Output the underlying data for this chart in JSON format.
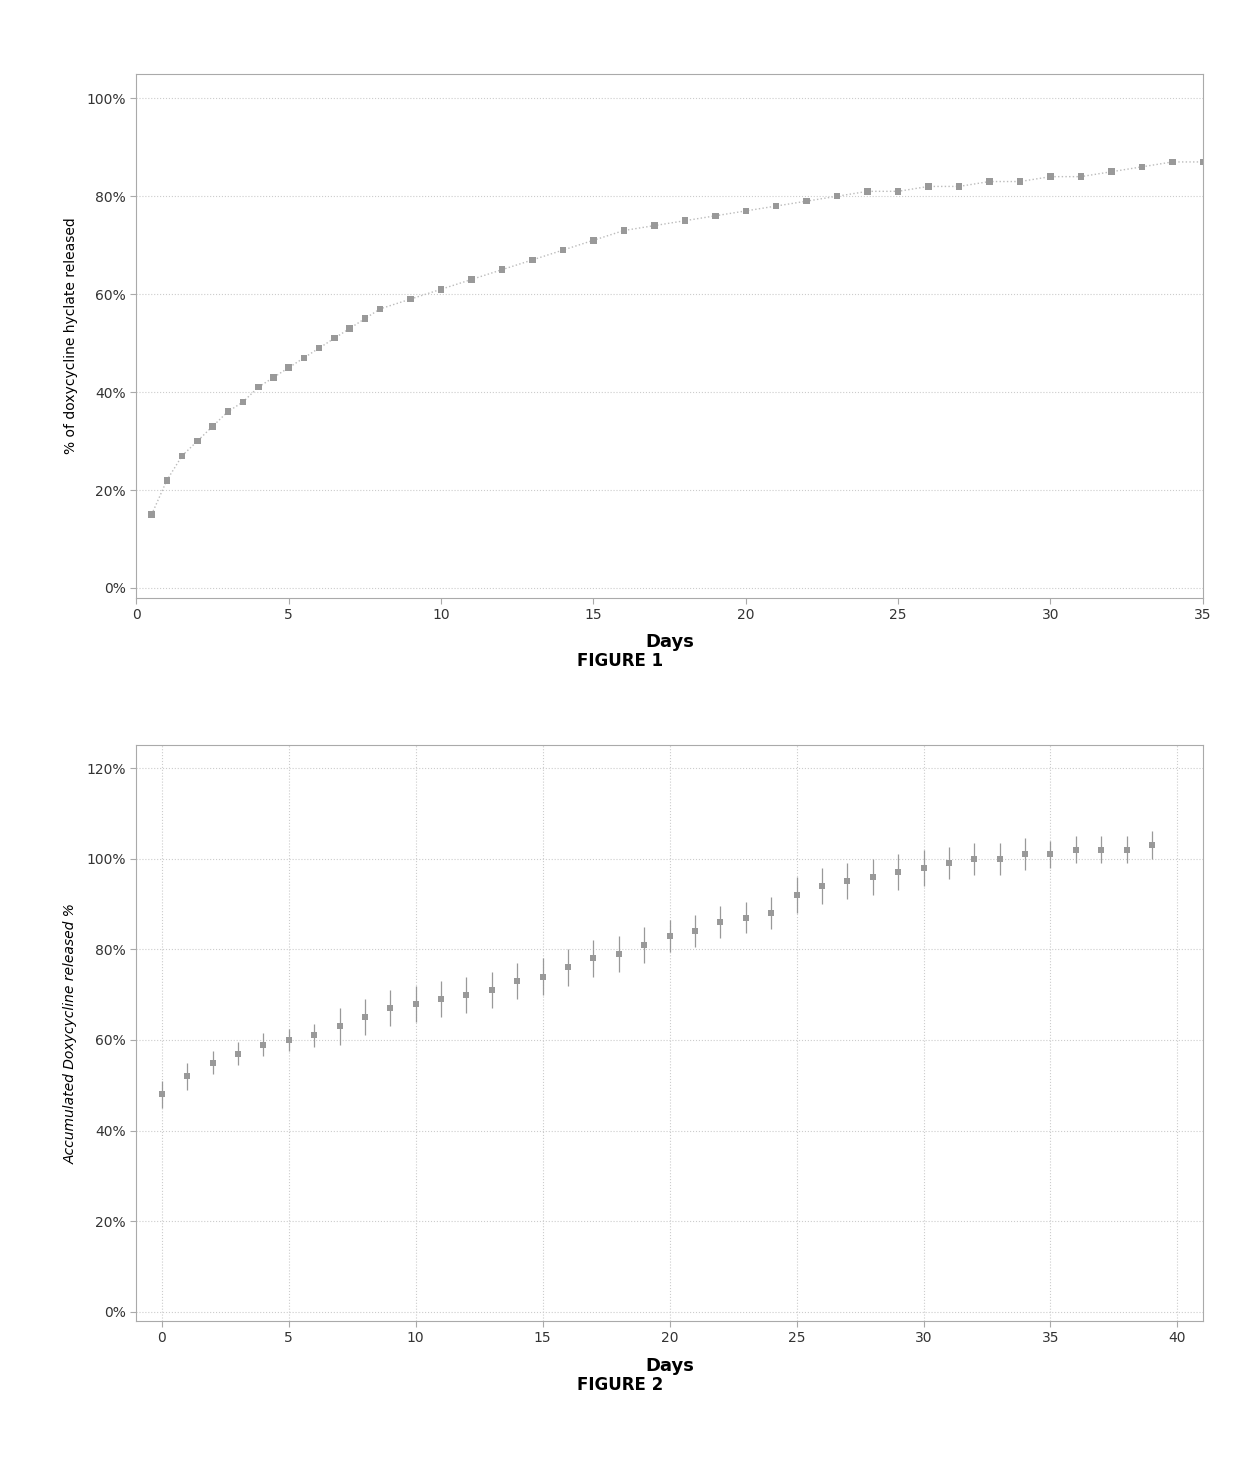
{
  "fig1": {
    "title": "FIGURE 1",
    "xlabel": "Days",
    "ylabel": "% of doxycycline hyclate released",
    "xlim": [
      0,
      35
    ],
    "ylim": [
      -0.02,
      1.05
    ],
    "yticks": [
      0,
      0.2,
      0.4,
      0.6,
      0.8,
      1.0
    ],
    "xticks": [
      0,
      5,
      10,
      15,
      20,
      25,
      30,
      35
    ],
    "x": [
      0.5,
      1,
      1.5,
      2,
      2.5,
      3,
      3.5,
      4,
      4.5,
      5,
      5.5,
      6,
      6.5,
      7,
      7.5,
      8,
      9,
      10,
      11,
      12,
      13,
      14,
      15,
      16,
      17,
      18,
      19,
      20,
      21,
      22,
      23,
      24,
      25,
      26,
      27,
      28,
      29,
      30,
      31,
      32,
      33,
      34,
      35
    ],
    "y": [
      0.15,
      0.22,
      0.27,
      0.3,
      0.33,
      0.36,
      0.38,
      0.41,
      0.43,
      0.45,
      0.47,
      0.49,
      0.51,
      0.53,
      0.55,
      0.57,
      0.59,
      0.61,
      0.63,
      0.65,
      0.67,
      0.69,
      0.71,
      0.73,
      0.74,
      0.75,
      0.76,
      0.77,
      0.78,
      0.79,
      0.8,
      0.81,
      0.81,
      0.82,
      0.82,
      0.83,
      0.83,
      0.84,
      0.84,
      0.85,
      0.86,
      0.87,
      0.87
    ]
  },
  "fig2": {
    "title": "FIGURE 2",
    "xlabel": "Days",
    "ylabel": "Accumulated Doxycycline released %",
    "xlim": [
      -1,
      41
    ],
    "ylim": [
      -0.02,
      1.25
    ],
    "yticks": [
      0,
      0.2,
      0.4,
      0.6,
      0.8,
      1.0,
      1.2
    ],
    "xticks": [
      0,
      5,
      10,
      15,
      20,
      25,
      30,
      35,
      40
    ],
    "x": [
      0,
      1,
      2,
      3,
      4,
      5,
      6,
      7,
      8,
      9,
      10,
      11,
      12,
      13,
      14,
      15,
      16,
      17,
      18,
      19,
      20,
      21,
      22,
      23,
      24,
      25,
      26,
      27,
      28,
      29,
      30,
      31,
      32,
      33,
      34,
      35,
      36,
      37,
      38,
      39
    ],
    "y": [
      0.48,
      0.52,
      0.55,
      0.57,
      0.59,
      0.6,
      0.61,
      0.63,
      0.65,
      0.67,
      0.68,
      0.69,
      0.7,
      0.71,
      0.73,
      0.74,
      0.76,
      0.78,
      0.79,
      0.81,
      0.83,
      0.84,
      0.86,
      0.87,
      0.88,
      0.92,
      0.94,
      0.95,
      0.96,
      0.97,
      0.98,
      0.99,
      1.0,
      1.0,
      1.01,
      1.01,
      1.02,
      1.02,
      1.02,
      1.03
    ],
    "yerr": [
      0.03,
      0.03,
      0.025,
      0.025,
      0.025,
      0.025,
      0.025,
      0.04,
      0.04,
      0.04,
      0.04,
      0.04,
      0.04,
      0.04,
      0.04,
      0.04,
      0.04,
      0.04,
      0.04,
      0.04,
      0.035,
      0.035,
      0.035,
      0.035,
      0.035,
      0.04,
      0.04,
      0.04,
      0.04,
      0.04,
      0.04,
      0.035,
      0.035,
      0.035,
      0.035,
      0.03,
      0.03,
      0.03,
      0.03,
      0.03
    ]
  },
  "background_color": "#ffffff",
  "marker_color": "#999999",
  "line_color": "#bbbbbb",
  "grid_color": "#cccccc",
  "spine_color": "#aaaaaa"
}
